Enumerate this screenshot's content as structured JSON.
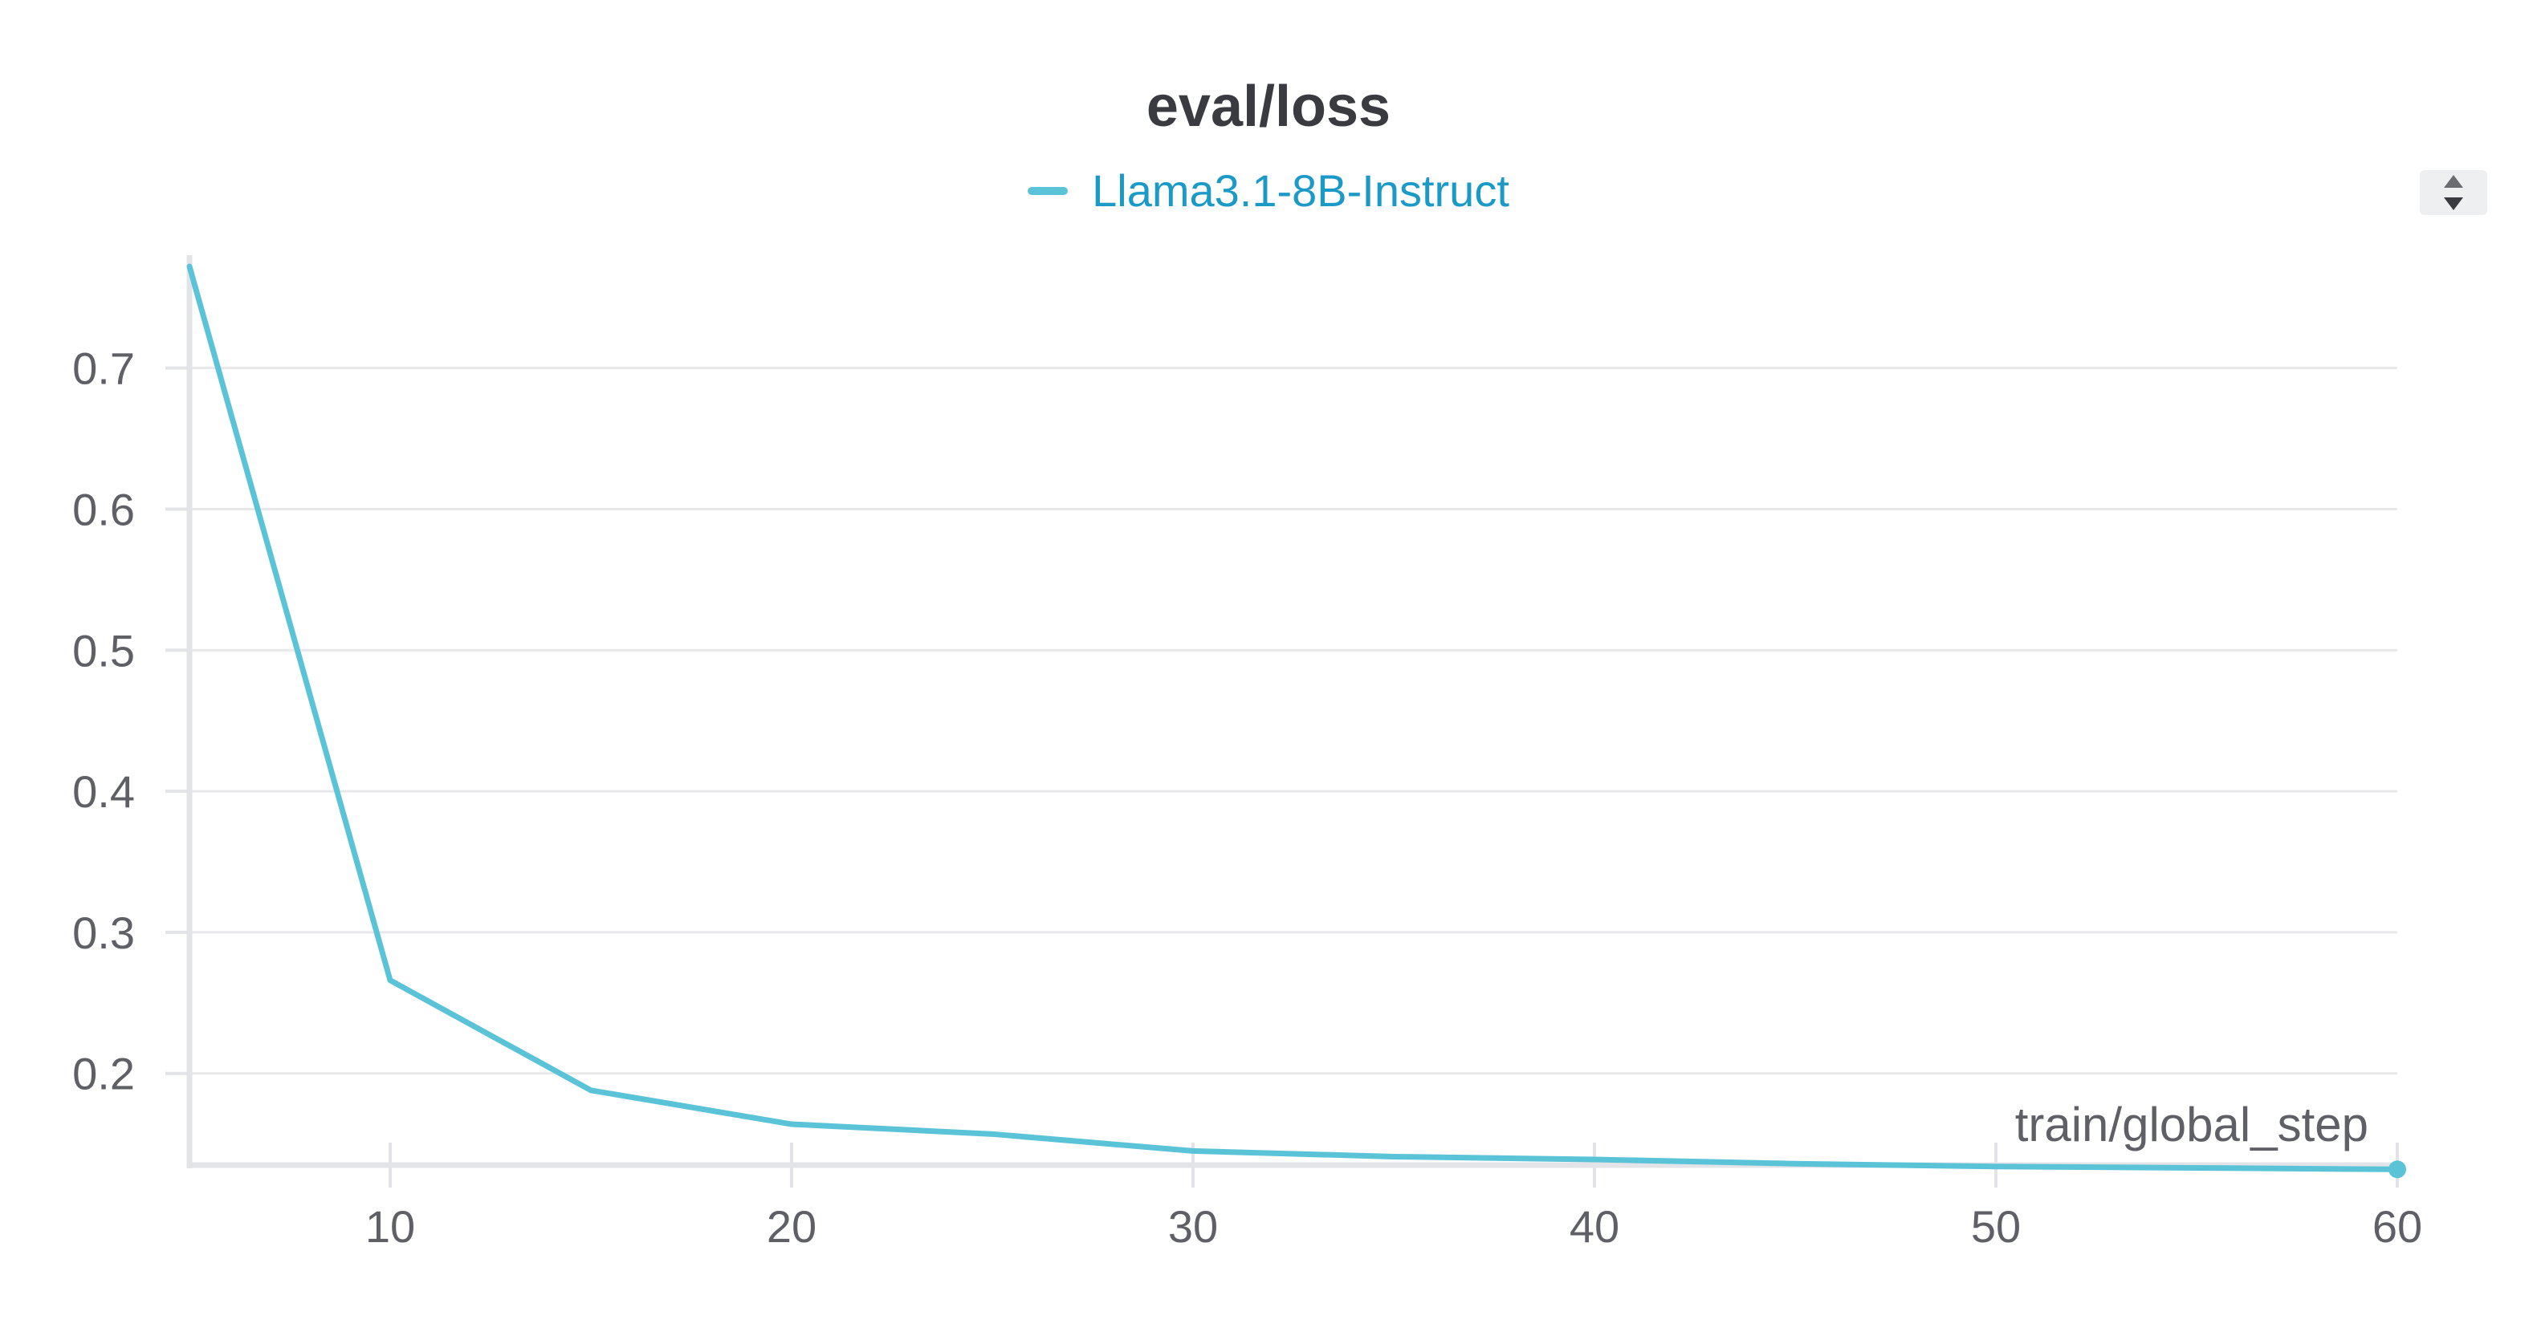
{
  "colors": {
    "series": "#5bc3d8",
    "legend_text": "#1b9ac8",
    "axis": "#e3e4e7",
    "grid": "#e8e8ea",
    "text": "#5f6066"
  },
  "icons": {
    "legend_scroll": "up-down-arrows-icon"
  },
  "chart_data": {
    "type": "line",
    "title": "eval/loss",
    "xlabel": "train/global_step",
    "ylabel": "",
    "xlim": [
      5,
      60
    ],
    "ylim": [
      0.135,
      0.78
    ],
    "xticks": [
      10,
      20,
      30,
      40,
      50,
      60
    ],
    "yticks": [
      0.2,
      0.3,
      0.4,
      0.5,
      0.6,
      0.7
    ],
    "xtick_labels": [
      "10",
      "20",
      "30",
      "40",
      "50",
      "60"
    ],
    "ytick_labels": [
      "0.2",
      "0.3",
      "0.4",
      "0.5",
      "0.6",
      "0.7"
    ],
    "grid": "horizontal",
    "legend": "top-center",
    "series": [
      {
        "name": "Llama3.1-8B-Instruct",
        "x": [
          5,
          10,
          15,
          20,
          25,
          30,
          35,
          40,
          45,
          50,
          55,
          60
        ],
        "y": [
          0.772,
          0.266,
          0.188,
          0.164,
          0.157,
          0.145,
          0.141,
          0.139,
          0.136,
          0.134,
          0.133,
          0.132
        ]
      }
    ]
  }
}
